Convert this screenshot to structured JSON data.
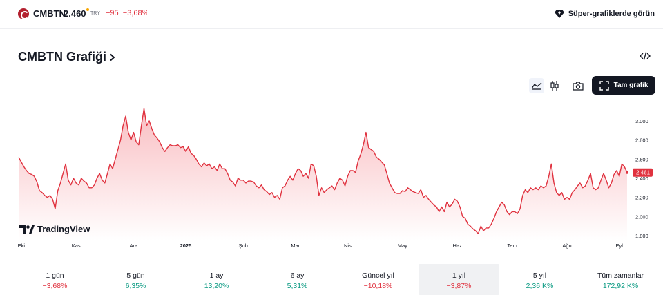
{
  "header": {
    "symbol": "CMBTN",
    "price": "2.460",
    "currency": "TRY",
    "change": "−95",
    "change_pct": "−3,68%",
    "super_link": "Süper-grafiklerde görün"
  },
  "title": "CMBTN Grafiği",
  "toolbar": {
    "full_chart_label": "Tam grafik"
  },
  "brand": "TradingView",
  "colors": {
    "line": "#e0323f",
    "negative": "#e0323f",
    "positive": "#089981",
    "accent": "#131722"
  },
  "chart_data": {
    "type": "area",
    "title": "",
    "xlabel": "",
    "ylabel": "",
    "y_ticks": [
      "3.000",
      "2.800",
      "2.600",
      "2.400",
      "2.200",
      "2.000",
      "1.800"
    ],
    "ylim": [
      1.75,
      3.15
    ],
    "x_ticks": [
      {
        "label": "Eki",
        "at": 1
      },
      {
        "label": "Kas",
        "at": 22
      },
      {
        "label": "Ara",
        "at": 44
      },
      {
        "label": "2025",
        "at": 64
      },
      {
        "label": "Şub",
        "at": 86
      },
      {
        "label": "Mar",
        "at": 106
      },
      {
        "label": "Nis",
        "at": 126
      },
      {
        "label": "May",
        "at": 147
      },
      {
        "label": "Haz",
        "at": 168
      },
      {
        "label": "Tem",
        "at": 189
      },
      {
        "label": "Ağu",
        "at": 210
      },
      {
        "label": "Eyl",
        "at": 230
      }
    ],
    "last_value_label": "2.461",
    "series": [
      {
        "values": [
          2.62,
          2.57,
          2.52,
          2.48,
          2.45,
          2.44,
          2.42,
          2.36,
          2.27,
          2.25,
          2.22,
          2.2,
          2.22,
          2.18,
          2.08,
          2.27,
          2.35,
          2.45,
          2.55,
          2.38,
          2.33,
          2.4,
          2.35,
          2.33,
          2.4,
          2.37,
          2.35,
          2.3,
          2.3,
          2.33,
          2.4,
          2.45,
          2.38,
          2.35,
          2.45,
          2.55,
          2.5,
          2.6,
          2.7,
          2.8,
          2.95,
          3.05,
          2.88,
          2.8,
          2.88,
          2.78,
          2.75,
          2.95,
          3.13,
          2.95,
          3.0,
          2.92,
          2.85,
          2.82,
          2.78,
          2.72,
          2.68,
          2.72,
          2.75,
          2.74,
          2.74,
          2.75,
          2.72,
          2.73,
          2.68,
          2.73,
          2.66,
          2.64,
          2.6,
          2.55,
          2.52,
          2.56,
          2.53,
          2.55,
          2.5,
          2.52,
          2.48,
          2.55,
          2.5,
          2.5,
          2.45,
          2.38,
          2.36,
          2.32,
          2.4,
          2.38,
          2.38,
          2.35,
          2.37,
          2.37,
          2.36,
          2.32,
          2.3,
          2.33,
          2.28,
          2.26,
          2.23,
          2.25,
          2.2,
          2.22,
          2.18,
          2.3,
          2.32,
          2.38,
          2.42,
          2.38,
          2.45,
          2.5,
          2.48,
          2.42,
          2.45,
          2.4,
          2.55,
          2.53,
          2.42,
          2.22,
          2.3,
          2.25,
          2.28,
          2.3,
          2.32,
          2.28,
          2.35,
          2.4,
          2.38,
          2.32,
          2.42,
          2.48,
          2.48,
          2.46,
          2.58,
          2.65,
          2.75,
          2.88,
          2.72,
          2.7,
          2.68,
          2.62,
          2.6,
          2.57,
          2.54,
          2.45,
          2.35,
          2.3,
          2.25,
          2.24,
          2.24,
          2.27,
          2.26,
          2.3,
          2.28,
          2.26,
          2.25,
          2.24,
          2.28,
          2.2,
          2.22,
          2.18,
          2.15,
          2.12,
          2.1,
          2.05,
          2.1,
          2.05,
          2.15,
          2.1,
          2.13,
          2.18,
          2.16,
          2.1,
          2.0,
          1.98,
          1.92,
          1.9,
          1.87,
          1.85,
          1.82,
          1.9,
          1.85,
          1.88,
          1.88,
          1.92,
          1.98,
          2.05,
          2.1,
          2.15,
          2.12,
          2.05,
          2.02,
          2.05,
          2.05,
          2.03,
          2.08,
          2.22,
          2.28,
          2.25,
          2.3,
          2.28,
          2.3,
          2.28,
          2.32,
          2.3,
          2.32,
          2.42,
          2.55,
          2.35,
          2.25,
          2.22,
          2.25,
          2.18,
          2.2,
          2.18,
          2.25,
          2.28,
          2.32,
          2.35,
          2.3,
          2.32,
          2.38,
          2.45,
          2.3,
          2.28,
          2.3,
          2.38,
          2.45,
          2.38,
          2.3,
          2.35,
          2.44,
          2.48,
          2.42,
          2.55,
          2.52,
          2.46
        ]
      }
    ]
  },
  "periods": [
    {
      "label": "1 gün",
      "value": "−3,68%",
      "dir": "neg"
    },
    {
      "label": "5 gün",
      "value": "6,35%",
      "dir": "pos"
    },
    {
      "label": "1 ay",
      "value": "13,20%",
      "dir": "pos"
    },
    {
      "label": "6 ay",
      "value": "5,31%",
      "dir": "pos"
    },
    {
      "label": "Güncel yıl",
      "value": "−10,18%",
      "dir": "neg"
    },
    {
      "label": "1 yıl",
      "value": "−3,87%",
      "dir": "neg",
      "active": true
    },
    {
      "label": "5 yıl",
      "value": "2,36 K%",
      "dir": "pos"
    },
    {
      "label": "Tüm zamanlar",
      "value": "172,92 K%",
      "dir": "pos"
    }
  ]
}
